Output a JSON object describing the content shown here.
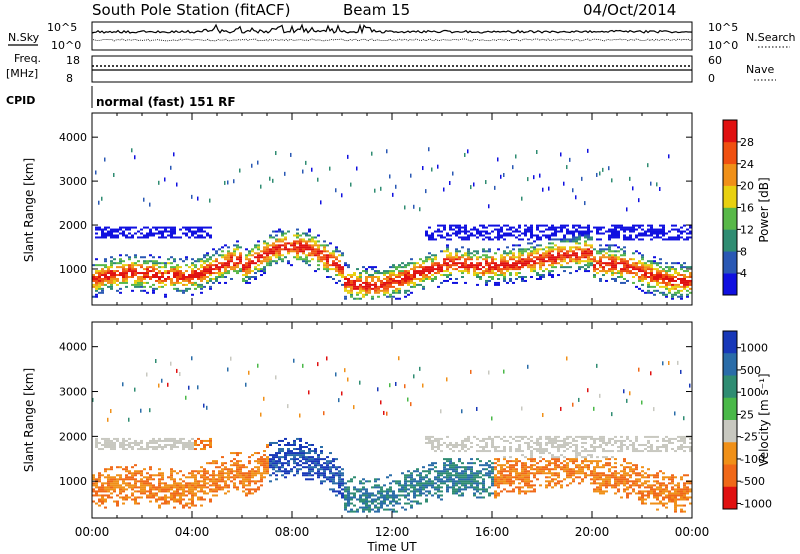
{
  "header": {
    "station": "South Pole Station (fitACF)",
    "beam": "Beam 15",
    "date": "04/Oct/2014"
  },
  "strip": {
    "left_nsky": "N.Sky",
    "right_nsearch": "N.Search",
    "left_freq": "Freq.",
    "left_freq_unit": "[MHz]",
    "right_nave": "Nave",
    "left_cpid": "CPID",
    "cpid_text": "normal (fast) 151 RF",
    "noise_ticks": [
      "10^5",
      "10^0"
    ],
    "freq_ticks": [
      "18",
      "8"
    ],
    "nave_ticks": [
      "60",
      "0"
    ]
  },
  "chart_data": [
    {
      "type": "heatmap",
      "name": "power",
      "ylabel": "Slant Range [km]",
      "ylim": [
        180,
        4550
      ],
      "yticks": [
        1000,
        2000,
        3000,
        4000
      ],
      "colorbar": {
        "label": "Power [dB]",
        "ticks": [
          "4",
          "8",
          "12",
          "16",
          "20",
          "24",
          "28"
        ],
        "colors": [
          "#1010e0",
          "#2a58b4",
          "#2f8c72",
          "#58b848",
          "#e8d010",
          "#f09018",
          "#f05010",
          "#e01010"
        ]
      }
    },
    {
      "type": "heatmap",
      "name": "velocity",
      "ylabel": "Slant Range [km]",
      "xlabel": "Time UT",
      "ylim": [
        180,
        4550
      ],
      "yticks": [
        1000,
        2000,
        3000,
        4000
      ],
      "colorbar": {
        "label": "Velocity [m s⁻¹]",
        "ticks": [
          "1000",
          "500",
          "100",
          "25",
          "-25",
          "-100",
          "-500",
          "-1000"
        ],
        "colors": [
          "#1838b8",
          "#2a6ca8",
          "#2f8c72",
          "#4ab848",
          "#c8c8c0",
          "#f09018",
          "#f06818",
          "#e01010"
        ]
      }
    }
  ],
  "x_axis": {
    "ticks": [
      "00:00",
      "04:00",
      "08:00",
      "12:00",
      "16:00",
      "20:00",
      "00:00"
    ],
    "xlabel": "Time UT"
  }
}
